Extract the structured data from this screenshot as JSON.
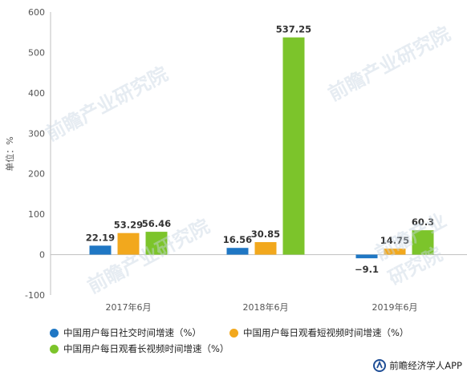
{
  "chart_data": {
    "type": "bar",
    "categories": [
      "2017年6月",
      "2018年6月",
      "2019年6月"
    ],
    "series": [
      {
        "name": "中国用户每日社交时间增速（%）",
        "values": [
          22.19,
          16.56,
          -9.1
        ],
        "labels": [
          "22.19",
          "16.56",
          "−9.1"
        ],
        "color": "#1f77c4"
      },
      {
        "name": "中国用户每日观看短视频时间增速（%）",
        "values": [
          53.29,
          30.85,
          14.75
        ],
        "labels": [
          "53.29",
          "30.85",
          "14.75"
        ],
        "color": "#f2a81d"
      },
      {
        "name": "中国用户每日观看长视频时间增速（%）",
        "values": [
          56.46,
          537.25,
          60.3
        ],
        "labels": [
          "56.46",
          "537.25",
          "60.3"
        ],
        "color": "#7cc42b"
      }
    ],
    "ylabel": "单位：%",
    "ylim": [
      -100,
      600
    ],
    "yticks": [
      -100,
      0,
      100,
      200,
      300,
      400,
      500,
      600
    ],
    "ytick_labels": [
      "-100",
      "0",
      "100",
      "200",
      "300",
      "400",
      "500",
      "600"
    ],
    "grid": false,
    "legend_position": "bottom"
  },
  "watermark": {
    "text": "前瞻产业研究院"
  },
  "footer": {
    "source": "前瞻经济学人APP"
  }
}
